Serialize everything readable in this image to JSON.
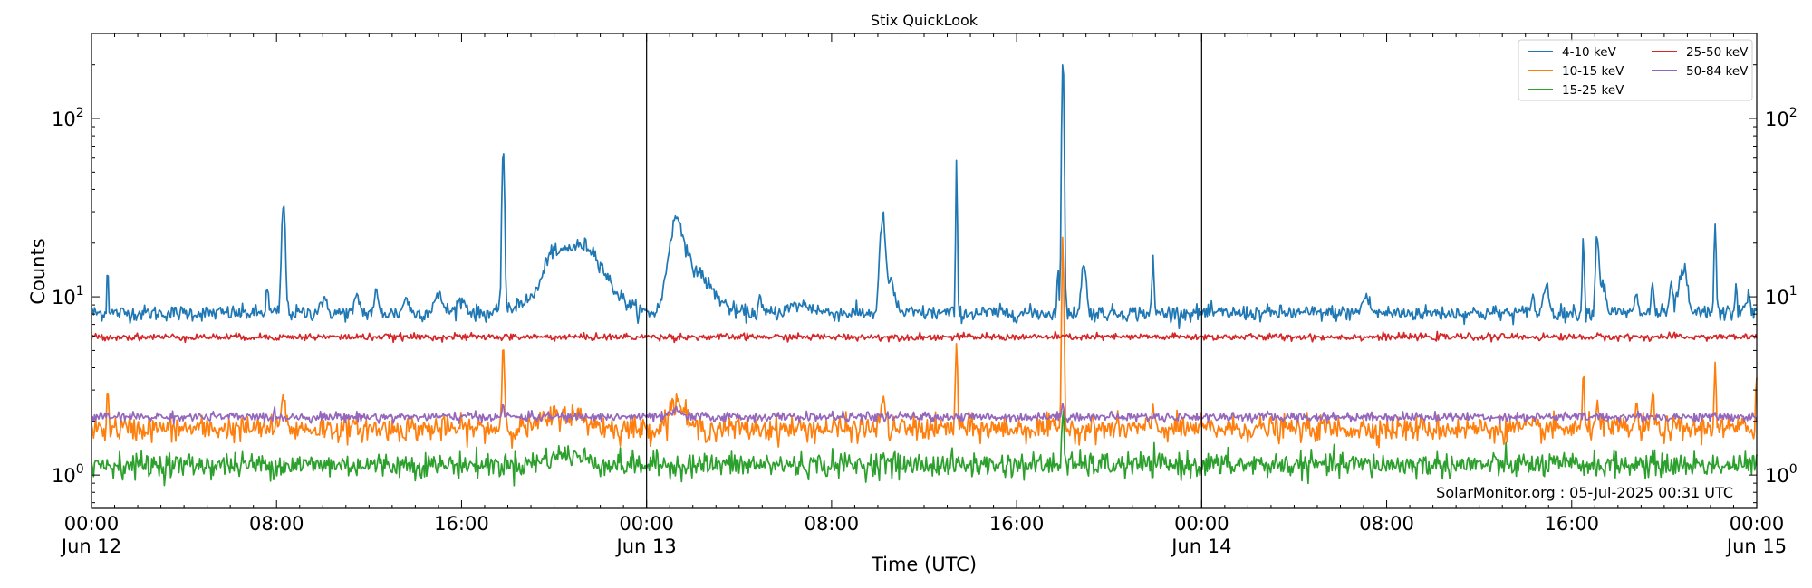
{
  "chart_data": {
    "type": "line",
    "title": "Stix QuickLook",
    "xlabel": "Time (UTC)",
    "ylabel": "Counts",
    "yscale": "log",
    "ylim": [
      0.65,
      300
    ],
    "xlim_hours": [
      0,
      72
    ],
    "x_ticks": [
      {
        "hour": 0,
        "line1": "00:00",
        "line2": "Jun 12"
      },
      {
        "hour": 8,
        "line1": "08:00",
        "line2": ""
      },
      {
        "hour": 16,
        "line1": "16:00",
        "line2": ""
      },
      {
        "hour": 24,
        "line1": "00:00",
        "line2": "Jun 13"
      },
      {
        "hour": 32,
        "line1": "08:00",
        "line2": ""
      },
      {
        "hour": 40,
        "line1": "16:00",
        "line2": ""
      },
      {
        "hour": 48,
        "line1": "00:00",
        "line2": "Jun 14"
      },
      {
        "hour": 56,
        "line1": "08:00",
        "line2": ""
      },
      {
        "hour": 64,
        "line1": "16:00",
        "line2": ""
      },
      {
        "hour": 72,
        "line1": "00:00",
        "line2": "Jun 15"
      }
    ],
    "y_ticks": [
      {
        "value": 1,
        "base": "10",
        "exp": "0"
      },
      {
        "value": 10,
        "base": "10",
        "exp": "1"
      },
      {
        "value": 100,
        "base": "10",
        "exp": "2"
      }
    ],
    "day_boundaries_hours": [
      24,
      48
    ],
    "legend_position": "top-right",
    "grid": false,
    "credit": "SolarMonitor.org : 05-Jul-2025 00:31 UTC",
    "series": [
      {
        "name": "4-10 keV",
        "color": "#1f77b4",
        "baseline": 8.1,
        "noise": 0.05,
        "peaks": [
          [
            0.7,
            15,
            0.03
          ],
          [
            8.3,
            33,
            0.07
          ],
          [
            7.6,
            11,
            0.05
          ],
          [
            10,
            9.5,
            0.15
          ],
          [
            11.5,
            10,
            0.1
          ],
          [
            12.3,
            10.5,
            0.08
          ],
          [
            13.6,
            10,
            0.1
          ],
          [
            15,
            10,
            0.2
          ],
          [
            16,
            9.5,
            0.2
          ],
          [
            17.8,
            68,
            0.05
          ],
          [
            18.5,
            9,
            0.2
          ],
          [
            19.8,
            11,
            0.15
          ],
          [
            20.5,
            18,
            0.8
          ],
          [
            21.6,
            14,
            0.5
          ],
          [
            22.5,
            10,
            0.6
          ],
          [
            25.3,
            27,
            0.3
          ],
          [
            26.1,
            13,
            0.4
          ],
          [
            26.8,
            10,
            0.5
          ],
          [
            28.9,
            10,
            0.05
          ],
          [
            30.7,
            9,
            0.5
          ],
          [
            34.2,
            27,
            0.1
          ],
          [
            34.5,
            12,
            0.2
          ],
          [
            37.4,
            53,
            0.03
          ],
          [
            41.8,
            14,
            0.04
          ],
          [
            42.0,
            230,
            0.04
          ],
          [
            42.9,
            15,
            0.1
          ],
          [
            45.9,
            16,
            0.04
          ],
          [
            55.1,
            10,
            0.15
          ],
          [
            62.3,
            11,
            0.05
          ],
          [
            62.9,
            12,
            0.1
          ],
          [
            64.5,
            21,
            0.04
          ],
          [
            65.1,
            21,
            0.06
          ],
          [
            65.3,
            12,
            0.15
          ],
          [
            66.8,
            11,
            0.05
          ],
          [
            67.5,
            12,
            0.05
          ],
          [
            68.3,
            11,
            0.08
          ],
          [
            68.7,
            12,
            0.12
          ],
          [
            68.9,
            13,
            0.1
          ],
          [
            70.2,
            26,
            0.04
          ],
          [
            71.1,
            12,
            0.04
          ],
          [
            71.6,
            10,
            0.1
          ]
        ]
      },
      {
        "name": "10-15 keV",
        "color": "#ff7f0e",
        "baseline": 1.82,
        "noise": 0.08,
        "peaks": [
          [
            0.7,
            3.2,
            0.03
          ],
          [
            8.3,
            3.0,
            0.07
          ],
          [
            17.8,
            5.5,
            0.05
          ],
          [
            20.5,
            2.2,
            0.8
          ],
          [
            25.3,
            2.6,
            0.3
          ],
          [
            34.2,
            2.6,
            0.1
          ],
          [
            37.4,
            5.5,
            0.04
          ],
          [
            42.0,
            21,
            0.04
          ],
          [
            45.9,
            2.6,
            0.04
          ],
          [
            64.5,
            3.4,
            0.04
          ],
          [
            65.1,
            2.8,
            0.06
          ],
          [
            66.8,
            2.4,
            0.05
          ],
          [
            67.5,
            3.1,
            0.05
          ],
          [
            70.2,
            4.3,
            0.04
          ],
          [
            72.0,
            3.8,
            0.04
          ]
        ]
      },
      {
        "name": "15-25 keV",
        "color": "#2ca02c",
        "baseline": 1.14,
        "noise": 0.08,
        "peaks": [
          [
            42.0,
            2.5,
            0.04
          ],
          [
            20.5,
            1.3,
            0.8
          ],
          [
            34.2,
            1.25,
            0.1
          ]
        ]
      },
      {
        "name": "25-50 keV",
        "color": "#d62728",
        "baseline": 5.95,
        "noise": 0.022,
        "peaks": []
      },
      {
        "name": "50-84 keV",
        "color": "#9467bd",
        "baseline": 2.12,
        "noise": 0.03,
        "peaks": [
          [
            42.0,
            2.6,
            0.04
          ],
          [
            17.8,
            2.4,
            0.05
          ],
          [
            25.3,
            2.3,
            0.2
          ]
        ]
      }
    ]
  }
}
